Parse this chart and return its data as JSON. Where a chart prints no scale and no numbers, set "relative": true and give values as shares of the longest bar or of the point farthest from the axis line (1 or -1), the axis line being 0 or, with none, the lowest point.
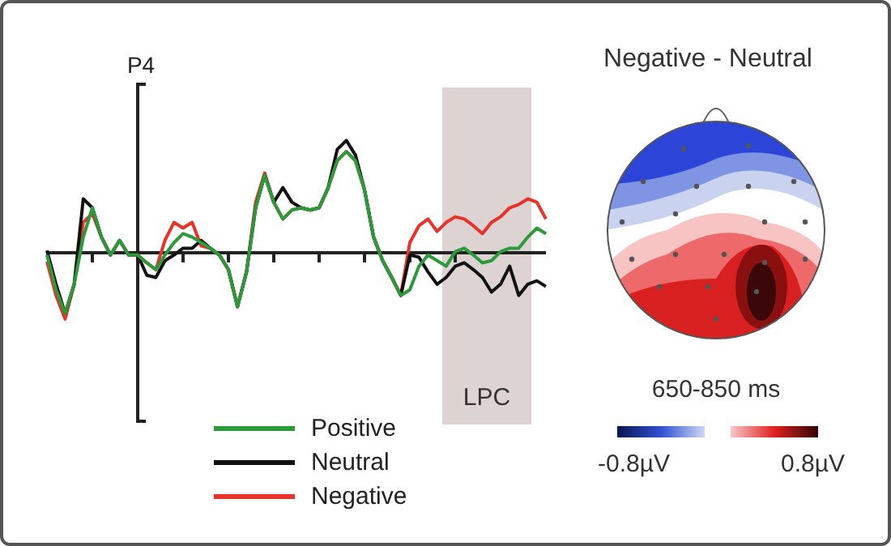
{
  "chart_data": [
    {
      "type": "line",
      "relative": true,
      "annotations": [
        "P4",
        "LPC"
      ],
      "legend": "bottom",
      "categories": [
        null,
        null,
        null,
        null,
        null,
        null,
        null,
        null,
        null,
        null,
        null,
        null,
        null,
        null,
        null,
        null,
        null,
        null,
        null,
        null,
        null,
        null,
        null,
        null,
        null,
        null,
        null,
        null,
        null,
        null,
        null,
        null,
        null,
        null,
        null,
        null,
        null,
        null,
        null,
        null,
        null,
        null,
        null,
        null,
        null,
        null,
        null,
        null,
        null,
        null,
        null,
        null,
        null,
        null,
        null,
        null
      ],
      "series": [
        {
          "name": "Positive",
          "color": "#2a9a3a",
          "values": [
            -0.02,
            -0.33,
            -0.54,
            -0.28,
            0.14,
            0.4,
            0.14,
            -0.02,
            0.11,
            -0.02,
            -0.02,
            -0.09,
            -0.15,
            -0.02,
            0.09,
            0.17,
            0.14,
            0.09,
            0.04,
            -0.02,
            -0.15,
            -0.48,
            -0.17,
            0.4,
            0.69,
            0.45,
            0.3,
            0.38,
            0.4,
            0.38,
            0.4,
            0.58,
            0.82,
            0.9,
            0.82,
            0.56,
            0.14,
            -0.07,
            -0.22,
            -0.38,
            -0.33,
            -0.12,
            -0.02,
            -0.07,
            -0.12,
            0.01,
            0.04,
            -0.02,
            -0.09,
            -0.07,
            0.01,
            0.04,
            0.04,
            0.14,
            0.22,
            0.17
          ]
        },
        {
          "name": "Neutral",
          "color": "#111111",
          "values": [
            0.02,
            -0.28,
            -0.54,
            -0.28,
            0.48,
            0.4,
            0.14,
            -0.02,
            0.11,
            -0.02,
            -0.02,
            -0.2,
            -0.22,
            -0.07,
            -0.02,
            0.04,
            0.04,
            0.11,
            0.04,
            -0.02,
            -0.15,
            -0.48,
            -0.17,
            0.4,
            0.69,
            0.45,
            0.58,
            0.45,
            0.4,
            0.38,
            0.4,
            0.58,
            0.92,
            1,
            0.87,
            0.56,
            0.14,
            -0.07,
            -0.22,
            -0.38,
            -0.02,
            -0.04,
            -0.17,
            -0.28,
            -0.22,
            -0.12,
            -0.09,
            -0.15,
            -0.22,
            -0.35,
            -0.28,
            -0.12,
            -0.38,
            -0.28,
            -0.25,
            -0.3
          ]
        },
        {
          "name": "Negative",
          "color": "#e8322a",
          "values": [
            -0.08,
            -0.38,
            -0.59,
            -0.28,
            0.27,
            0.35,
            0.14,
            -0.02,
            0.11,
            -0.02,
            -0.02,
            -0.09,
            -0.15,
            0.11,
            0.27,
            0.22,
            0.27,
            0.06,
            0.04,
            -0.02,
            -0.15,
            -0.48,
            -0.17,
            0.45,
            0.71,
            0.45,
            0.3,
            0.38,
            0.4,
            0.38,
            0.4,
            0.58,
            0.82,
            0.9,
            0.82,
            0.56,
            0.14,
            -0.07,
            -0.22,
            -0.38,
            0.09,
            0.24,
            0.3,
            0.19,
            0.27,
            0.32,
            0.3,
            0.24,
            0.17,
            0.27,
            0.32,
            0.4,
            0.43,
            0.48,
            0.45,
            0.3
          ]
        }
      ]
    },
    {
      "type": "other",
      "title": "Negative - Neutral",
      "annotations": [
        "650-850 ms",
        "-0.8µV",
        "0.8µV"
      ]
    }
  ]
}
